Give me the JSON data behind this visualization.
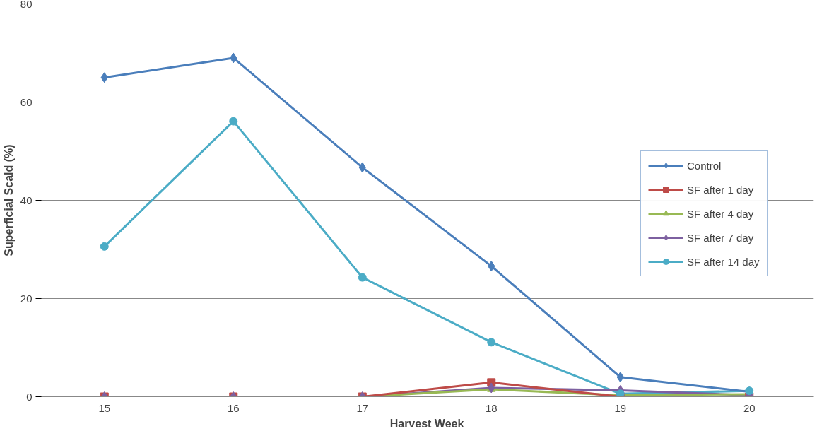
{
  "chart_data": {
    "type": "line",
    "xlabel": "Harvest Week",
    "ylabel": "Superficial Scald (%)",
    "categories": [
      "15",
      "16",
      "17",
      "18",
      "19",
      "20"
    ],
    "series": [
      {
        "name": "Control",
        "color": "#4a7ebb",
        "marker": "diamond",
        "values": [
          65,
          69,
          46.7,
          26.6,
          4,
          1
        ]
      },
      {
        "name": "SF after 1 day",
        "color": "#be4b48",
        "marker": "square",
        "values": [
          0,
          0,
          0,
          2.9,
          0,
          0
        ]
      },
      {
        "name": "SF after 4 day",
        "color": "#98b954",
        "marker": "triangle",
        "values": [
          0,
          0,
          0,
          1.5,
          0.3,
          0.5
        ]
      },
      {
        "name": "SF after 7 day",
        "color": "#7d60a0",
        "marker": "diamond",
        "values": [
          0,
          0,
          0,
          1.8,
          1.3,
          0.3
        ]
      },
      {
        "name": "SF after 14 day",
        "color": "#4bacc6",
        "marker": "circle",
        "values": [
          30.6,
          56.1,
          24.3,
          11.1,
          0.6,
          1.2
        ]
      }
    ],
    "ylim": [
      0,
      80
    ],
    "yticks": [
      0,
      20,
      40,
      60,
      80
    ],
    "grid": "y",
    "legend": "right"
  }
}
